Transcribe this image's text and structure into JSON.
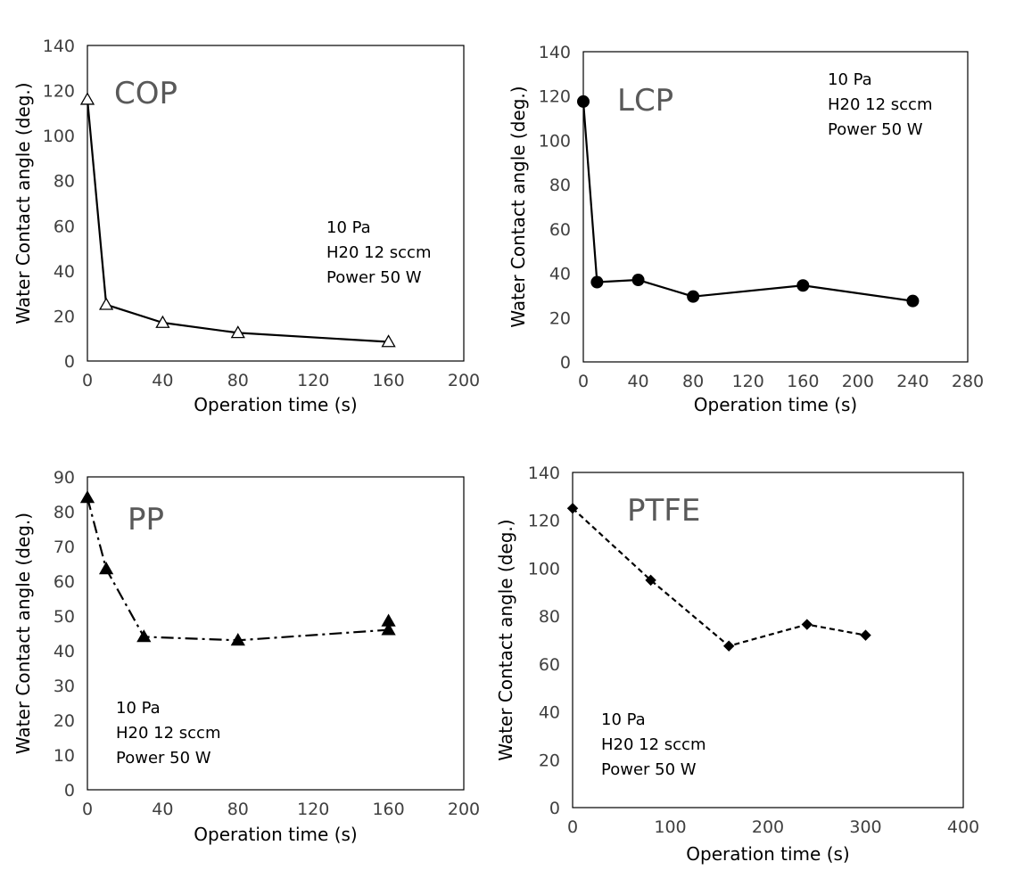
{
  "chart_data": [
    {
      "type": "line",
      "title": "COP",
      "xlabel": "Operation time (s)",
      "ylabel": "Water Contact angle (deg.)",
      "xlim": [
        0,
        200
      ],
      "ylim": [
        0,
        140
      ],
      "xticks": [
        "0",
        "40",
        "80",
        "120",
        "160",
        "200"
      ],
      "yticks": [
        "0",
        "20",
        "40",
        "60",
        "80",
        "100",
        "120",
        "140"
      ],
      "annotation": [
        "10 Pa",
        "H20 12 sccm",
        "Power 50 W"
      ],
      "series": [
        {
          "marker": "open-triangle",
          "line": "solid",
          "x": [
            0,
            10,
            40,
            80,
            160
          ],
          "y": [
            116,
            25,
            17,
            12.5,
            8.5
          ]
        }
      ]
    },
    {
      "type": "line",
      "title": "LCP",
      "xlabel": "Operation time (s)",
      "ylabel": "Water Contact angle (deg.)",
      "xlim": [
        0,
        280
      ],
      "ylim": [
        0,
        140
      ],
      "xticks": [
        "0",
        "40",
        "80",
        "120",
        "160",
        "200",
        "240",
        "280"
      ],
      "yticks": [
        "0",
        "20",
        "40",
        "60",
        "80",
        "100",
        "120",
        "140"
      ],
      "annotation": [
        "10 Pa",
        "H20 12 sccm",
        "Power 50 W"
      ],
      "series": [
        {
          "marker": "filled-circle",
          "line": "solid",
          "x": [
            0,
            10,
            40,
            80,
            160,
            240
          ],
          "y": [
            117.5,
            36,
            37,
            29.5,
            34.5,
            27.5
          ]
        }
      ]
    },
    {
      "type": "line",
      "title": "PP",
      "xlabel": "Operation time (s)",
      "ylabel": "Water Contact angle (deg.)",
      "xlim": [
        0,
        200
      ],
      "ylim": [
        0,
        90
      ],
      "xticks": [
        "0",
        "40",
        "80",
        "120",
        "160",
        "200"
      ],
      "yticks": [
        "0",
        "10",
        "20",
        "30",
        "40",
        "50",
        "60",
        "70",
        "80",
        "90"
      ],
      "annotation": [
        "10 Pa",
        "H20 12 sccm",
        "Power 50 W"
      ],
      "series": [
        {
          "marker": "filled-triangle",
          "line": "dash-dot",
          "x": [
            0,
            10,
            30,
            80,
            160
          ],
          "y": [
            84,
            63.5,
            44,
            43,
            46
          ]
        },
        {
          "marker": "filled-triangle",
          "line": "none",
          "x": [
            160
          ],
          "y": [
            48.5
          ]
        }
      ]
    },
    {
      "type": "line",
      "title": "PTFE",
      "xlabel": "Operation time (s)",
      "ylabel": "Water Contact angle (deg.)",
      "xlim": [
        0,
        400
      ],
      "ylim": [
        0,
        140
      ],
      "xticks": [
        "0",
        "100",
        "200",
        "300",
        "400"
      ],
      "yticks": [
        "0",
        "20",
        "40",
        "60",
        "80",
        "100",
        "120",
        "140"
      ],
      "annotation": [
        "10 Pa",
        "H20 12 sccm",
        "Power 50 W"
      ],
      "series": [
        {
          "marker": "filled-diamond",
          "line": "dashed",
          "x": [
            0,
            80,
            160,
            240,
            300
          ],
          "y": [
            125,
            95,
            67.5,
            76.5,
            72
          ]
        }
      ]
    }
  ]
}
